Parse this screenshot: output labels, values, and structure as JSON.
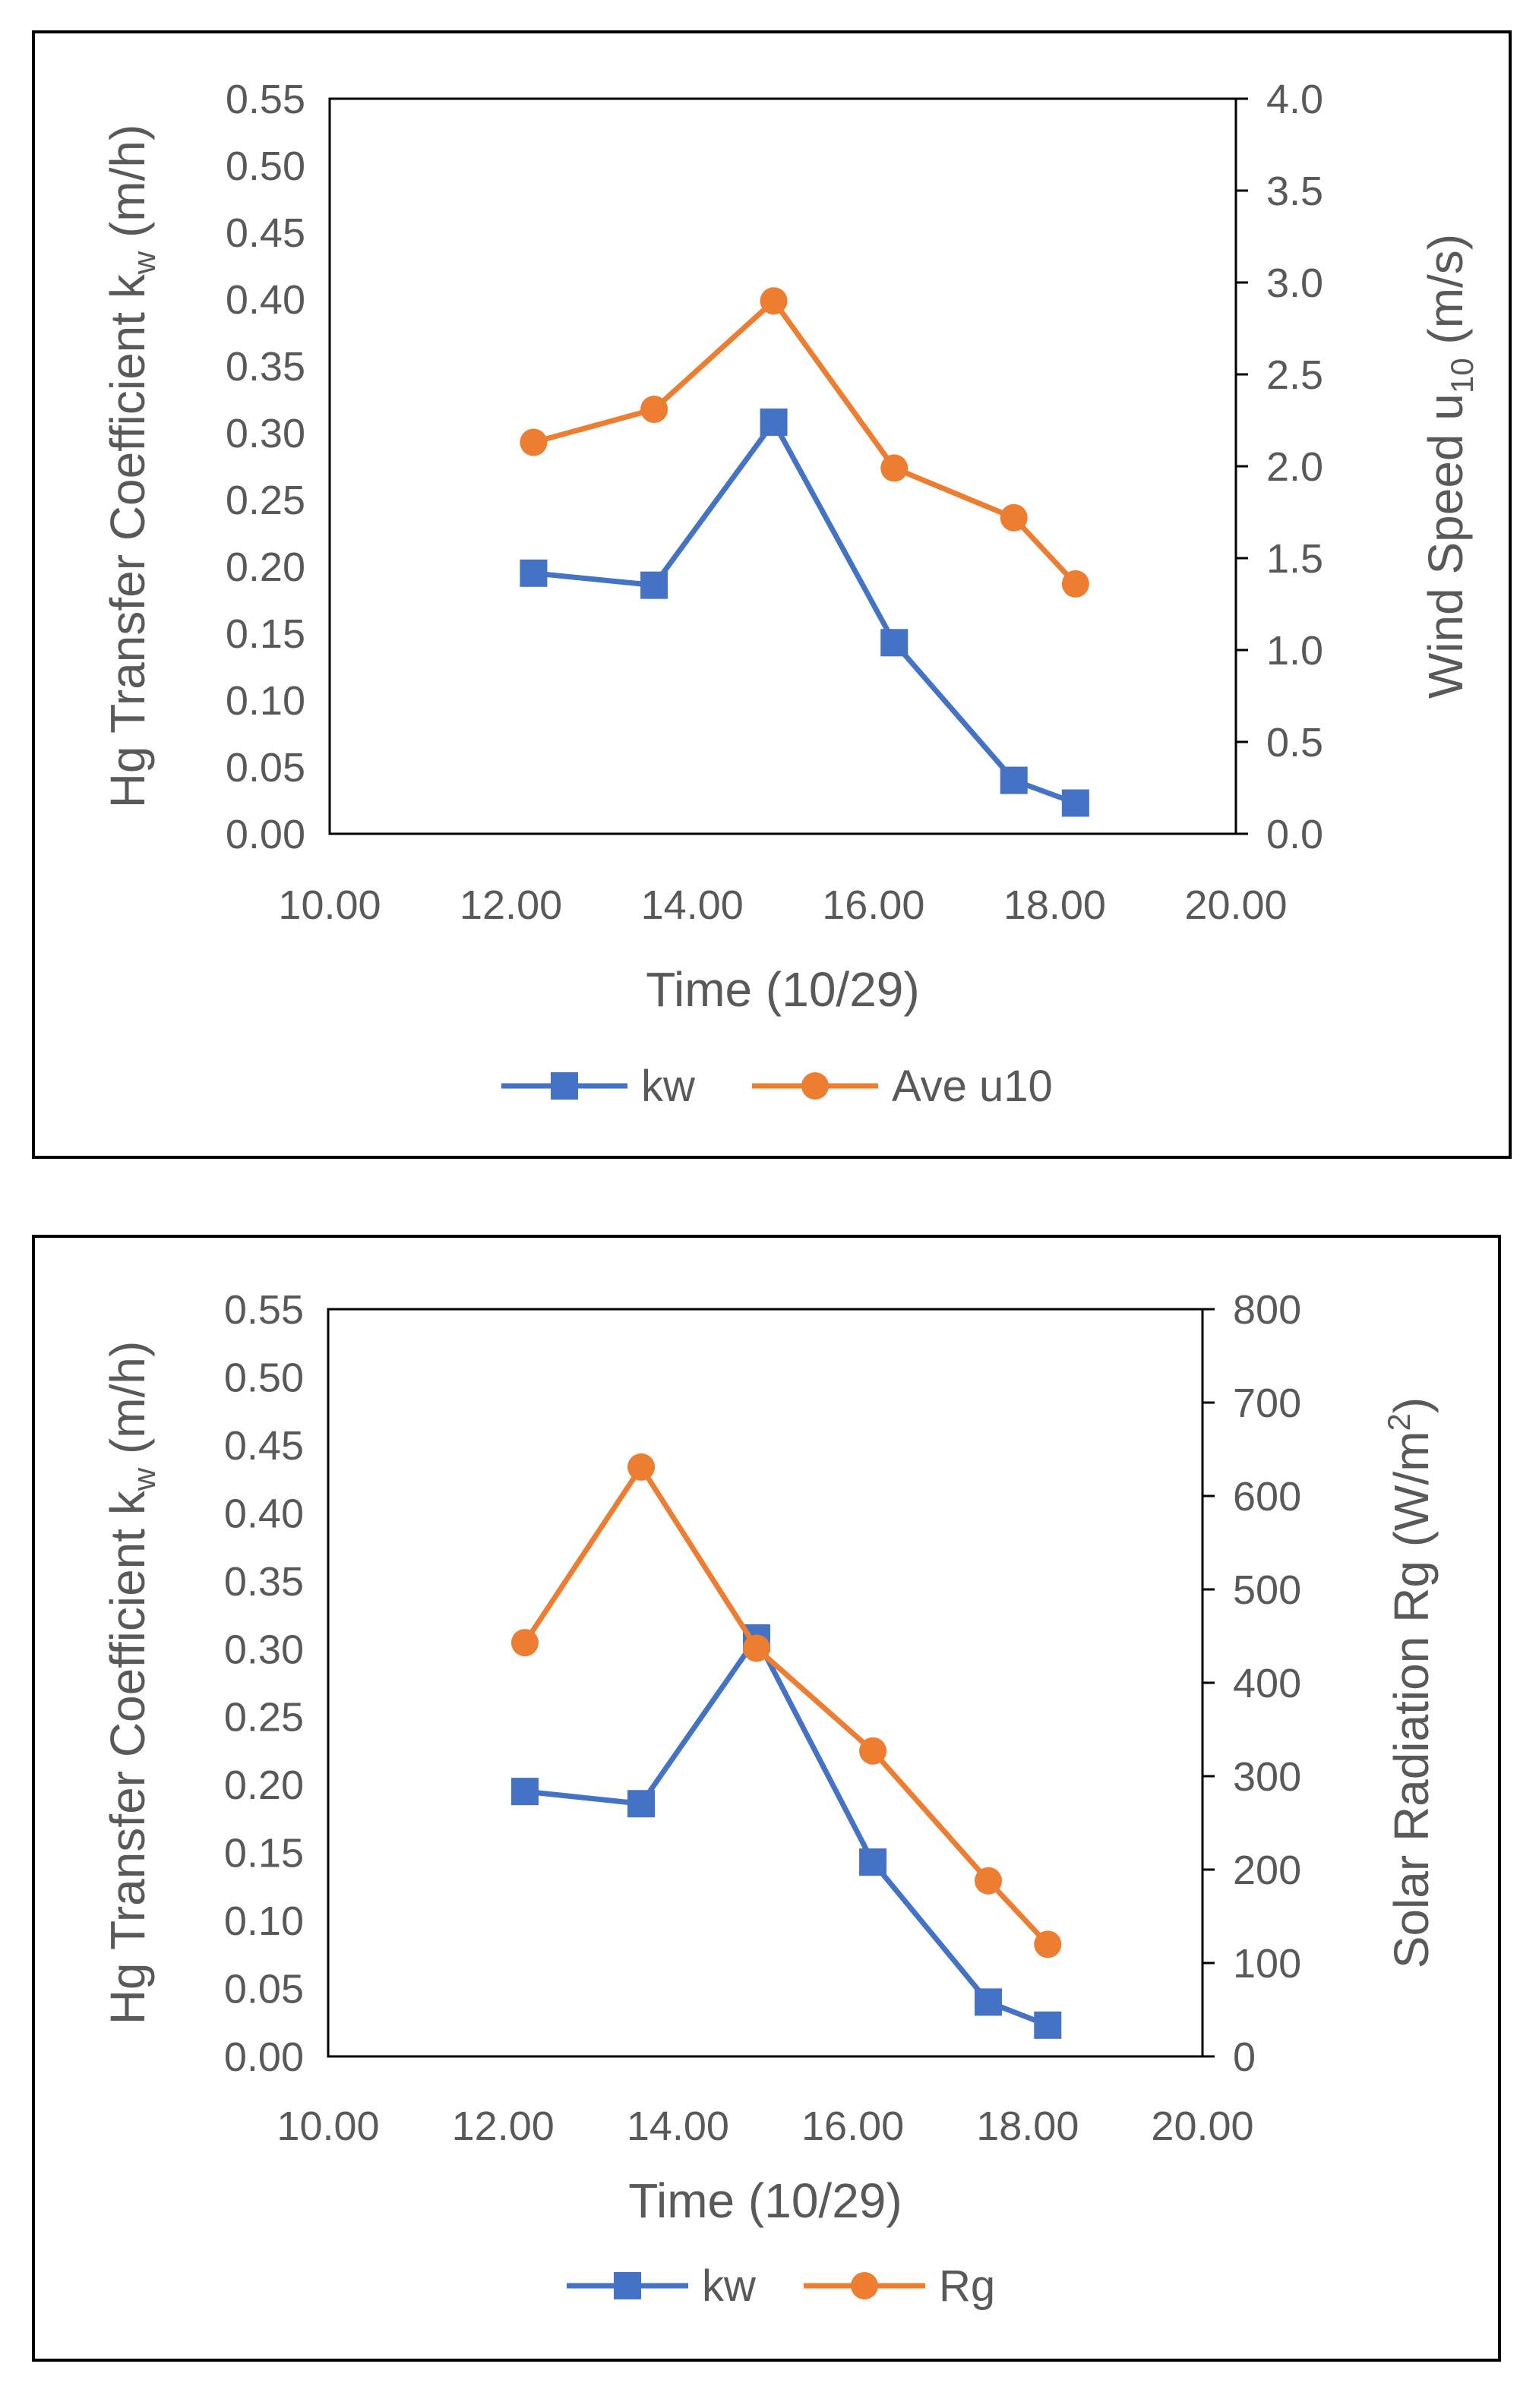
{
  "chart_data": [
    {
      "type": "line",
      "title": "",
      "xlabel": "Time (10/29)",
      "ylabel_left": "Hg Transfer Coefficient k_w (m/h)",
      "ylabel_left_parts": {
        "main": "Hg Transfer Coefficient k",
        "sub": "w",
        "unit": " (m/h)"
      },
      "ylabel_right": "Wind Speed u_10 (m/s)",
      "ylabel_right_parts": {
        "main": "Wind Speed u",
        "sub": "10",
        "unit": " (m/s)"
      },
      "xlim": [
        10,
        20
      ],
      "ylim_left": [
        0,
        0.55
      ],
      "ylim_right": [
        0,
        4
      ],
      "x_ticks": [
        "10.00",
        "12.00",
        "14.00",
        "16.00",
        "18.00",
        "20.00"
      ],
      "y_left_ticks": [
        "0.00",
        "0.05",
        "0.10",
        "0.15",
        "0.20",
        "0.25",
        "0.30",
        "0.35",
        "0.40",
        "0.45",
        "0.50",
        "0.55"
      ],
      "y_right_ticks": [
        "0.0",
        "0.5",
        "1.0",
        "1.5",
        "2.0",
        "2.5",
        "3.0",
        "3.5",
        "4.0"
      ],
      "series": [
        {
          "name": "kw",
          "axis": "left",
          "marker": "square",
          "color": "#4472C4",
          "x": [
            12.25,
            13.58,
            14.9,
            16.23,
            17.55,
            18.23
          ],
          "values": [
            0.195,
            0.186,
            0.308,
            0.143,
            0.04,
            0.023
          ]
        },
        {
          "name": "Ave u10",
          "axis": "right",
          "marker": "circle",
          "color": "#ED7D31",
          "x": [
            12.25,
            13.58,
            14.9,
            16.23,
            17.55,
            18.23
          ],
          "values": [
            2.13,
            2.31,
            2.9,
            1.99,
            1.72,
            1.36
          ]
        }
      ],
      "legend": [
        "kw",
        "Ave u10"
      ],
      "legend_position": "bottom"
    },
    {
      "type": "line",
      "title": "",
      "xlabel": "Time (10/29)",
      "ylabel_left": "Hg Transfer Coefficient k_w (m/h)",
      "ylabel_left_parts": {
        "main": "Hg Transfer Coefficient k",
        "sub": "w",
        "unit": " (m/h)"
      },
      "ylabel_right": "Solar Radiation Rg (W/m^2)",
      "ylabel_right_parts": {
        "main": "Solar Radiation Rg (W/m",
        "sup": "2",
        "unit": ")"
      },
      "xlim": [
        10,
        20
      ],
      "ylim_left": [
        0,
        0.55
      ],
      "ylim_right": [
        0,
        800
      ],
      "x_ticks": [
        "10.00",
        "12.00",
        "14.00",
        "16.00",
        "18.00",
        "20.00"
      ],
      "y_left_ticks": [
        "0.00",
        "0.05",
        "0.10",
        "0.15",
        "0.20",
        "0.25",
        "0.30",
        "0.35",
        "0.40",
        "0.45",
        "0.50",
        "0.55"
      ],
      "y_right_ticks": [
        "0",
        "100",
        "200",
        "300",
        "400",
        "500",
        "600",
        "700",
        "800"
      ],
      "series": [
        {
          "name": "kw",
          "axis": "left",
          "marker": "square",
          "color": "#4472C4",
          "x": [
            12.25,
            13.58,
            14.9,
            16.23,
            17.55,
            18.23
          ],
          "values": [
            0.195,
            0.186,
            0.308,
            0.143,
            0.04,
            0.023
          ]
        },
        {
          "name": "Rg",
          "axis": "right",
          "marker": "circle",
          "color": "#ED7D31",
          "x": [
            12.25,
            13.58,
            14.9,
            16.23,
            17.55,
            18.23
          ],
          "values": [
            443,
            631,
            437,
            327,
            188,
            120
          ]
        }
      ],
      "legend": [
        "kw",
        "Rg"
      ],
      "legend_position": "bottom"
    }
  ]
}
